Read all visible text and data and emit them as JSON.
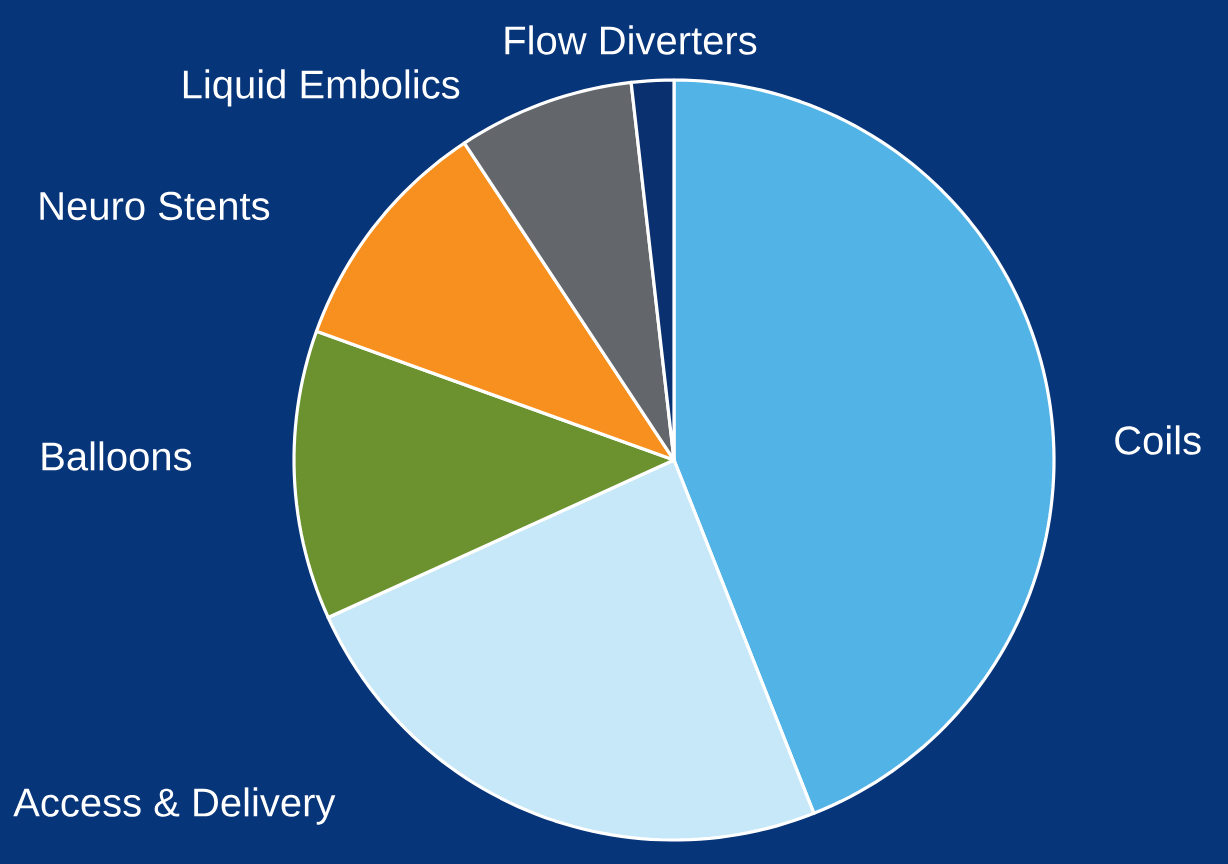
{
  "chart_data": {
    "type": "pie",
    "categories": [
      "Coils",
      "Access & Delivery",
      "Balloons",
      "Neuro Stents",
      "Liquid Embolics",
      "Flow Diverters"
    ],
    "values": [
      44,
      24.2,
      12.3,
      10.2,
      7.5,
      1.8
    ],
    "colors": [
      "#52b3e6",
      "#c6e8f8",
      "#6b922f",
      "#f7901e",
      "#63666b",
      "#0b3070"
    ]
  }
}
